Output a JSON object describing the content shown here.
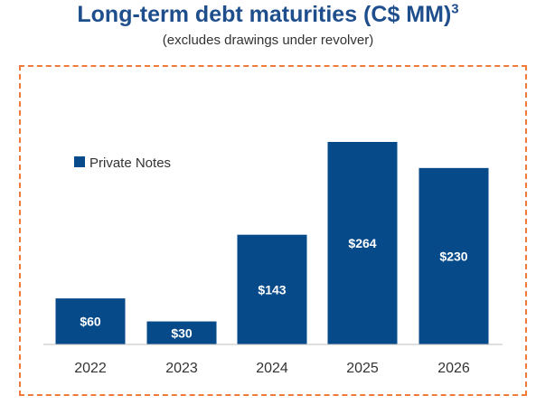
{
  "chart_data": {
    "type": "bar",
    "title": "Long-term debt maturities (C$ MM)",
    "title_superscript": "3",
    "subtitle": "(excludes drawings under revolver)",
    "categories": [
      "2022",
      "2023",
      "2024",
      "2025",
      "2026"
    ],
    "series": [
      {
        "name": "Private Notes",
        "values": [
          60,
          30,
          143,
          264,
          230
        ],
        "data_labels": [
          "$60",
          "$30",
          "$143",
          "$264",
          "$230"
        ],
        "color": "#064a8a"
      }
    ],
    "ylim": [
      0,
      264
    ],
    "legend_position": "top-left",
    "grid": false,
    "frame_color": "#f07a3a"
  }
}
